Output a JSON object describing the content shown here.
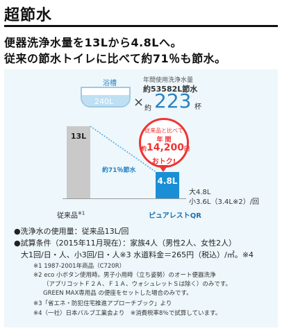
{
  "section_title": "超節水",
  "headline_1": "便器洗浄水量を13Lから4.8Lへ。",
  "headline_2": "従来の節水トイレに比べて約71％も節水。",
  "bathtub": {
    "label": "浴槽",
    "volume": "240L"
  },
  "annual": {
    "caption": "年間使用洗浄水量",
    "total": "約53582L節水",
    "times": "×",
    "approx": "約",
    "count": "223",
    "unit": "杯"
  },
  "chart_data": {
    "type": "bar",
    "categories": [
      "従来品",
      "ピュアレストQR"
    ],
    "values": [
      13,
      4.8
    ],
    "ylim": [
      0,
      14
    ],
    "data_labels": [
      "13L",
      "4.8L"
    ],
    "reduction_label": "約71％節水",
    "colors": [
      "#c9c9c9",
      "#1a8fd6"
    ]
  },
  "labels": {
    "conventional": "従来品",
    "conventional_note": "※1",
    "product": "ピュアレストQR",
    "qr_large": "大4.8L",
    "qr_small": "小3.6L（3.4L※2）/回"
  },
  "badge": {
    "line1": "従来品と比べて",
    "line2": "年 間",
    "approx": "約",
    "amount": "14,200",
    "yen": "円",
    "line4": "おトク!"
  },
  "notes": {
    "usage": "●洗浄水の使用量：従来品13L/回",
    "conditions": "●試算条件（2015年11月現在）：家族4人（男性2人、女性2人）",
    "conditions2": "大1回/日・人、小3回/日・人※3 水道料金＝265円（税込）/㎥。※4",
    "fn1": "※1 1987-2001年商品（C720R）",
    "fn2a": "※2 eco 小ボタン使用時。男子小用時（立ち姿勢）のオート便器洗浄",
    "fn2b": "（アプリコットＦ２Ａ、Ｆ１Ａ、ウォシュレットＳは除く）のみです。",
    "fn2c": "GREEN MAX専用品 の便座をセットした場合のみです。",
    "fn3": "※3「省エネ・防犯住宅推進アプローチブック」より",
    "fn4": "※4（一社）日本バルブ工業会より　※消費税率8％で試算しています。"
  }
}
